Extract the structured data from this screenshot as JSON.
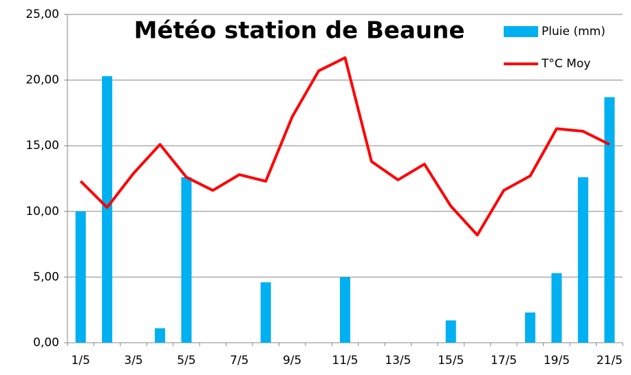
{
  "chart_data": {
    "type": "bar",
    "title": "Météo station de Beaune",
    "categories": [
      "1/5",
      null,
      "3/5",
      null,
      "5/5",
      null,
      "7/5",
      null,
      "9/5",
      null,
      "11/5",
      null,
      "13/5",
      null,
      "15/5",
      null,
      "17/5",
      null,
      "19/5",
      null,
      "21/5"
    ],
    "series": [
      {
        "name": "Pluie (mm)",
        "type": "bar",
        "color": "#00b0f0",
        "values": [
          10.0,
          20.3,
          0,
          1.1,
          12.6,
          0,
          0,
          4.6,
          0,
          0,
          5.0,
          0,
          0,
          0,
          1.7,
          0,
          0,
          2.3,
          5.3,
          12.6,
          18.7
        ]
      },
      {
        "name": "T°C Moy",
        "type": "line",
        "color": "#ff0000",
        "values": [
          12.3,
          10.3,
          12.9,
          15.1,
          12.6,
          11.6,
          12.8,
          12.3,
          17.2,
          20.7,
          21.7,
          13.8,
          12.4,
          13.6,
          10.4,
          8.2,
          11.6,
          12.7,
          16.3,
          16.1,
          15.1
        ]
      }
    ],
    "ylim": [
      0,
      25
    ],
    "yticks": [
      {
        "value": 0,
        "label": "0,00"
      },
      {
        "value": 5,
        "label": "5,00"
      },
      {
        "value": 10,
        "label": "10,00"
      },
      {
        "value": 15,
        "label": "15,00"
      },
      {
        "value": 20,
        "label": "20,00"
      },
      {
        "value": 25,
        "label": "25,00"
      }
    ],
    "grid": true,
    "legend": "upper right"
  }
}
